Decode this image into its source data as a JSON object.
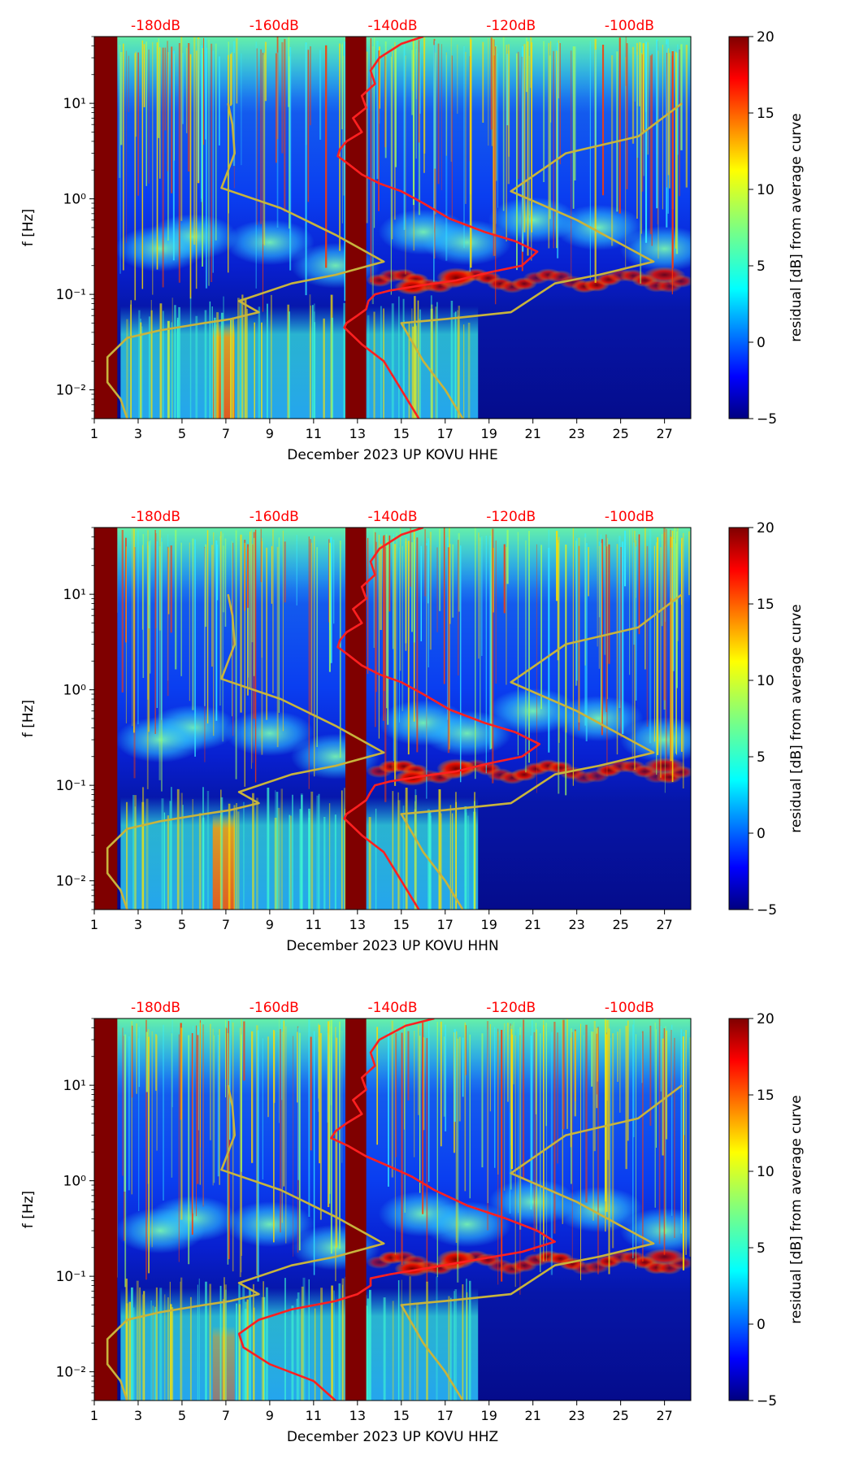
{
  "chart_data": [
    {
      "type": "heatmap",
      "title": "",
      "xlabel": "December 2023 UP KOVU  HHE",
      "ylabel": "f [Hz]",
      "xlim": [
        1,
        28.2
      ],
      "ylim": [
        0.005,
        50
      ],
      "yscale": "log",
      "x_ticks": [
        1,
        3,
        5,
        7,
        9,
        11,
        13,
        15,
        17,
        19,
        21,
        23,
        25,
        27
      ],
      "y_ticks": [
        {
          "value": 0.01,
          "label": "10⁻²"
        },
        {
          "value": 0.1,
          "label": "10⁻¹"
        },
        {
          "value": 1,
          "label": "10⁰"
        },
        {
          "value": 10,
          "label": "10¹"
        }
      ],
      "top_axis": {
        "labels": [
          "-180dB",
          "-160dB",
          "-140dB",
          "-120dB",
          "-100dB"
        ],
        "positions": [
          3.8,
          9.2,
          14.6,
          20.0,
          25.4
        ],
        "color": "#ff0000"
      },
      "colorbar": {
        "label": "residual [dB] from average curve",
        "min": -5,
        "max": 20,
        "ticks": [
          -5,
          0,
          5,
          10,
          15,
          20
        ]
      },
      "curves": [
        {
          "name": "red noise curve",
          "color": "#ff2020",
          "points": [
            [
              16.0,
              50
            ],
            [
              15.0,
              42
            ],
            [
              14.0,
              30
            ],
            [
              13.6,
              22
            ],
            [
              13.8,
              16
            ],
            [
              13.2,
              12
            ],
            [
              13.4,
              9
            ],
            [
              12.8,
              7
            ],
            [
              13.2,
              5
            ],
            [
              12.5,
              4
            ],
            [
              12.2,
              3.3
            ],
            [
              12.1,
              2.8
            ],
            [
              12.6,
              2.3
            ],
            [
              13.2,
              1.8
            ],
            [
              14.0,
              1.45
            ],
            [
              15.0,
              1.2
            ],
            [
              16.0,
              0.9
            ],
            [
              17.2,
              0.62
            ],
            [
              18.8,
              0.45
            ],
            [
              20.2,
              0.36
            ],
            [
              21.2,
              0.28
            ],
            [
              20.5,
              0.2
            ],
            [
              19.0,
              0.17
            ],
            [
              17.5,
              0.14
            ],
            [
              16.0,
              0.125
            ],
            [
              14.5,
              0.11
            ],
            [
              13.8,
              0.1
            ],
            [
              13.5,
              0.085
            ],
            [
              13.4,
              0.07
            ],
            [
              13.0,
              0.06
            ],
            [
              12.5,
              0.05
            ],
            [
              12.4,
              0.045
            ],
            [
              13.2,
              0.03
            ],
            [
              14.2,
              0.02
            ],
            [
              15.0,
              0.01
            ],
            [
              15.8,
              0.005
            ]
          ]
        },
        {
          "name": "gold model curve",
          "color": "#c8b43c",
          "points": [
            [
              7.1,
              10
            ],
            [
              7.3,
              6
            ],
            [
              7.4,
              3
            ],
            [
              6.8,
              1.3
            ],
            [
              9.5,
              0.8
            ],
            [
              12.0,
              0.42
            ],
            [
              14.2,
              0.22
            ],
            [
              12.0,
              0.16
            ],
            [
              10.0,
              0.13
            ],
            [
              7.6,
              0.085
            ],
            [
              8.5,
              0.065
            ],
            [
              7.2,
              0.055
            ],
            [
              6.0,
              0.05
            ],
            [
              4.0,
              0.042
            ],
            [
              2.5,
              0.035
            ],
            [
              1.6,
              0.022
            ],
            [
              1.6,
              0.012
            ],
            [
              2.2,
              0.008
            ],
            [
              2.5,
              0.005
            ]
          ]
        },
        {
          "name": "gold model curve",
          "color": "#c8b43c",
          "points": [
            [
              27.8,
              10
            ],
            [
              25.8,
              4.5
            ],
            [
              22.5,
              3.0
            ],
            [
              20.0,
              1.2
            ],
            [
              23.0,
              0.6
            ],
            [
              26.5,
              0.22
            ],
            [
              24.0,
              0.16
            ],
            [
              22.0,
              0.13
            ],
            [
              20.0,
              0.065
            ],
            [
              17.0,
              0.055
            ],
            [
              15.0,
              0.05
            ],
            [
              16.0,
              0.02
            ],
            [
              17.0,
              0.01
            ],
            [
              17.8,
              0.005
            ]
          ]
        }
      ]
    },
    {
      "type": "heatmap",
      "title": "",
      "xlabel": "December 2023 UP KOVU  HHN",
      "ylabel": "f [Hz]",
      "xlim": [
        1,
        28.2
      ],
      "ylim": [
        0.005,
        50
      ],
      "yscale": "log",
      "x_ticks": [
        1,
        3,
        5,
        7,
        9,
        11,
        13,
        15,
        17,
        19,
        21,
        23,
        25,
        27
      ],
      "y_ticks": [
        {
          "value": 0.01,
          "label": "10⁻²"
        },
        {
          "value": 0.1,
          "label": "10⁻¹"
        },
        {
          "value": 1,
          "label": "10⁰"
        },
        {
          "value": 10,
          "label": "10¹"
        }
      ],
      "top_axis": {
        "labels": [
          "-180dB",
          "-160dB",
          "-140dB",
          "-120dB",
          "-100dB"
        ],
        "positions": [
          3.8,
          9.2,
          14.6,
          20.0,
          25.4
        ],
        "color": "#ff0000"
      },
      "colorbar": {
        "label": "residual [dB] from average curve",
        "min": -5,
        "max": 20,
        "ticks": [
          -5,
          0,
          5,
          10,
          15,
          20
        ]
      },
      "curves": [
        {
          "name": "red noise curve",
          "color": "#ff2020",
          "points": [
            [
              16.0,
              50
            ],
            [
              15.0,
              42
            ],
            [
              14.0,
              30
            ],
            [
              13.6,
              22
            ],
            [
              13.8,
              16
            ],
            [
              13.2,
              12
            ],
            [
              13.4,
              9
            ],
            [
              12.8,
              7
            ],
            [
              13.2,
              5
            ],
            [
              12.5,
              4
            ],
            [
              12.2,
              3.3
            ],
            [
              12.1,
              2.8
            ],
            [
              12.6,
              2.3
            ],
            [
              13.2,
              1.8
            ],
            [
              14.0,
              1.45
            ],
            [
              15.0,
              1.2
            ],
            [
              16.0,
              0.9
            ],
            [
              17.2,
              0.62
            ],
            [
              18.8,
              0.45
            ],
            [
              20.2,
              0.36
            ],
            [
              21.3,
              0.27
            ],
            [
              20.5,
              0.2
            ],
            [
              19.0,
              0.17
            ],
            [
              17.5,
              0.14
            ],
            [
              16.0,
              0.125
            ],
            [
              14.5,
              0.11
            ],
            [
              13.8,
              0.1
            ],
            [
              13.6,
              0.085
            ],
            [
              13.4,
              0.07
            ],
            [
              13.0,
              0.06
            ],
            [
              12.5,
              0.05
            ],
            [
              12.4,
              0.045
            ],
            [
              13.2,
              0.03
            ],
            [
              14.2,
              0.02
            ],
            [
              15.0,
              0.01
            ],
            [
              15.8,
              0.005
            ]
          ]
        },
        {
          "name": "gold model curve",
          "color": "#c8b43c",
          "points": [
            [
              7.1,
              10
            ],
            [
              7.3,
              6
            ],
            [
              7.4,
              3
            ],
            [
              6.8,
              1.3
            ],
            [
              9.5,
              0.8
            ],
            [
              12.0,
              0.42
            ],
            [
              14.2,
              0.22
            ],
            [
              12.0,
              0.16
            ],
            [
              10.0,
              0.13
            ],
            [
              7.6,
              0.085
            ],
            [
              8.5,
              0.065
            ],
            [
              7.2,
              0.055
            ],
            [
              6.0,
              0.05
            ],
            [
              4.0,
              0.042
            ],
            [
              2.5,
              0.035
            ],
            [
              1.6,
              0.022
            ],
            [
              1.6,
              0.012
            ],
            [
              2.2,
              0.008
            ],
            [
              2.5,
              0.005
            ]
          ]
        },
        {
          "name": "gold model curve",
          "color": "#c8b43c",
          "points": [
            [
              27.8,
              10
            ],
            [
              25.8,
              4.5
            ],
            [
              22.5,
              3.0
            ],
            [
              20.0,
              1.2
            ],
            [
              23.0,
              0.6
            ],
            [
              26.5,
              0.22
            ],
            [
              24.0,
              0.16
            ],
            [
              22.0,
              0.13
            ],
            [
              20.0,
              0.065
            ],
            [
              17.0,
              0.055
            ],
            [
              15.0,
              0.05
            ],
            [
              16.0,
              0.02
            ],
            [
              17.0,
              0.01
            ],
            [
              17.8,
              0.005
            ]
          ]
        }
      ]
    },
    {
      "type": "heatmap",
      "title": "",
      "xlabel": "December 2023 UP KOVU  HHZ",
      "ylabel": "f [Hz]",
      "xlim": [
        1,
        28.2
      ],
      "ylim": [
        0.005,
        50
      ],
      "yscale": "log",
      "x_ticks": [
        1,
        3,
        5,
        7,
        9,
        11,
        13,
        15,
        17,
        19,
        21,
        23,
        25,
        27
      ],
      "y_ticks": [
        {
          "value": 0.01,
          "label": "10⁻²"
        },
        {
          "value": 0.1,
          "label": "10⁻¹"
        },
        {
          "value": 1,
          "label": "10⁰"
        },
        {
          "value": 10,
          "label": "10¹"
        }
      ],
      "top_axis": {
        "labels": [
          "-180dB",
          "-160dB",
          "-140dB",
          "-120dB",
          "-100dB"
        ],
        "positions": [
          3.8,
          9.2,
          14.6,
          20.0,
          25.4
        ],
        "color": "#ff0000"
      },
      "colorbar": {
        "label": "residual [dB] from average curve",
        "min": -5,
        "max": 20,
        "ticks": [
          -5,
          0,
          5,
          10,
          15,
          20
        ]
      },
      "curves": [
        {
          "name": "red noise curve",
          "color": "#ff2020",
          "points": [
            [
              16.5,
              50
            ],
            [
              15.2,
              42
            ],
            [
              14.0,
              30
            ],
            [
              13.6,
              22
            ],
            [
              13.8,
              16
            ],
            [
              13.2,
              12
            ],
            [
              13.4,
              9
            ],
            [
              12.8,
              7
            ],
            [
              13.2,
              5
            ],
            [
              12.5,
              4
            ],
            [
              12.0,
              3.3
            ],
            [
              11.8,
              2.8
            ],
            [
              12.6,
              2.3
            ],
            [
              13.4,
              1.8
            ],
            [
              14.5,
              1.4
            ],
            [
              15.5,
              1.1
            ],
            [
              16.5,
              0.8
            ],
            [
              18.0,
              0.55
            ],
            [
              19.8,
              0.4
            ],
            [
              21.2,
              0.3
            ],
            [
              22.0,
              0.23
            ],
            [
              20.5,
              0.18
            ],
            [
              18.5,
              0.15
            ],
            [
              16.5,
              0.125
            ],
            [
              14.5,
              0.105
            ],
            [
              13.6,
              0.095
            ],
            [
              13.6,
              0.08
            ],
            [
              13.0,
              0.065
            ],
            [
              12.0,
              0.055
            ],
            [
              10.0,
              0.045
            ],
            [
              8.5,
              0.035
            ],
            [
              7.6,
              0.025
            ],
            [
              7.8,
              0.018
            ],
            [
              9.0,
              0.012
            ],
            [
              11.0,
              0.008
            ],
            [
              12.0,
              0.005
            ]
          ]
        },
        {
          "name": "gold model curve",
          "color": "#c8b43c",
          "points": [
            [
              7.1,
              10
            ],
            [
              7.3,
              6
            ],
            [
              7.4,
              3
            ],
            [
              6.8,
              1.3
            ],
            [
              9.5,
              0.8
            ],
            [
              12.0,
              0.42
            ],
            [
              14.2,
              0.22
            ],
            [
              12.0,
              0.16
            ],
            [
              10.0,
              0.13
            ],
            [
              7.6,
              0.085
            ],
            [
              8.5,
              0.065
            ],
            [
              7.2,
              0.055
            ],
            [
              6.0,
              0.05
            ],
            [
              4.0,
              0.042
            ],
            [
              2.5,
              0.035
            ],
            [
              1.6,
              0.022
            ],
            [
              1.6,
              0.012
            ],
            [
              2.2,
              0.008
            ],
            [
              2.5,
              0.005
            ]
          ]
        },
        {
          "name": "gold model curve",
          "color": "#c8b43c",
          "points": [
            [
              27.8,
              10
            ],
            [
              25.8,
              4.5
            ],
            [
              22.5,
              3.0
            ],
            [
              20.0,
              1.2
            ],
            [
              23.0,
              0.6
            ],
            [
              26.5,
              0.22
            ],
            [
              24.0,
              0.16
            ],
            [
              22.0,
              0.13
            ],
            [
              20.0,
              0.065
            ],
            [
              17.0,
              0.055
            ],
            [
              15.0,
              0.05
            ],
            [
              16.0,
              0.02
            ],
            [
              17.0,
              0.01
            ],
            [
              17.8,
              0.005
            ]
          ]
        }
      ]
    }
  ]
}
